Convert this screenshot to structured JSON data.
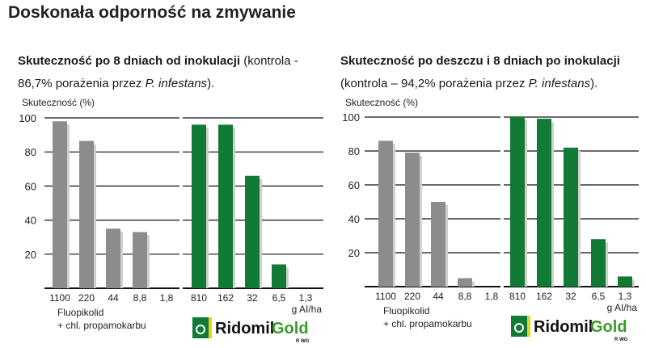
{
  "title": "Doskonała odporność na zmywanie",
  "colors": {
    "gray": "#8c8c8c",
    "green": "#117a35",
    "shadow": "#d0d0d0"
  },
  "chart_data": [
    {
      "type": "bar",
      "subtitle_bold": "Skuteczność po 8 dniach od inokulacji",
      "subtitle_pre": " (kontrola - 86,7% porażenia przez ",
      "subtitle_italic": "P. infestans",
      "subtitle_post": ").",
      "ylabel": "Skuteczność (%)",
      "yticks": [
        "20",
        "40",
        "60",
        "80",
        "100"
      ],
      "ylim": [
        0,
        100
      ],
      "xunit": "g AI/ha",
      "series": [
        {
          "name": "Fluopikolid + chl. propamokarbu",
          "label_line1": "Fluopikolid",
          "label_line2": "+ chl. propamokarbu",
          "categories": [
            "1100",
            "220",
            "44",
            "8,8",
            "1,8"
          ],
          "values": [
            98,
            86.5,
            35,
            33,
            0
          ]
        },
        {
          "name": "RidomilGold R WG",
          "categories": [
            "810",
            "162",
            "32",
            "6,5",
            "1,3"
          ],
          "values": [
            96,
            96,
            66,
            14,
            0
          ]
        }
      ]
    },
    {
      "type": "bar",
      "subtitle_bold": "Skuteczność po deszczu i 8 dniach po inokulacji",
      "subtitle_pre": " (kontrola – 94,2% porażenia przez ",
      "subtitle_italic": "P. infestans",
      "subtitle_post": ").",
      "ylabel": "Skuteczność (%)",
      "yticks": [
        "20",
        "40",
        "60",
        "80",
        "100"
      ],
      "ylim": [
        0,
        100
      ],
      "xunit": "g AI/ha",
      "series": [
        {
          "name": "Fluopikolid + chl. propamokarbu",
          "label_line1": "Fluopikolid",
          "label_line2": "+ chl. propamokarbu",
          "categories": [
            "1100",
            "220",
            "44",
            "8,8",
            "1,8"
          ],
          "values": [
            86,
            79,
            50,
            5,
            0
          ]
        },
        {
          "name": "RidomilGold R WG",
          "categories": [
            "810",
            "162",
            "32",
            "6,5",
            "1,3"
          ],
          "values": [
            100,
            99,
            82,
            28,
            6
          ]
        }
      ]
    }
  ],
  "logo": {
    "part1": "Ridomil",
    "part2": "Gold",
    "sub": "R WG"
  }
}
